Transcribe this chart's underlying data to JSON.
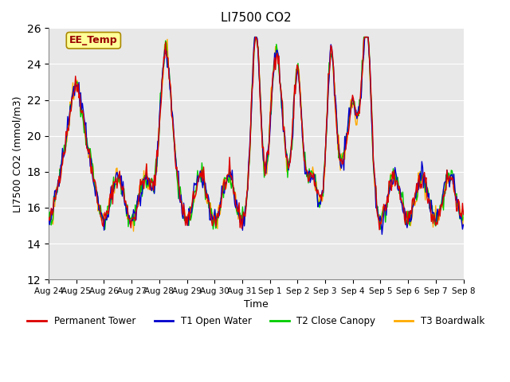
{
  "title": "LI7500 CO2",
  "ylabel": "LI7500 CO2 (mmol/m3)",
  "xlabel": "Time",
  "ylim": [
    12,
    26
  ],
  "yticks": [
    12,
    14,
    16,
    18,
    20,
    22,
    24,
    26
  ],
  "annotation_text": "EE_Temp",
  "annotation_color": "#990000",
  "annotation_bg": "#FFFF99",
  "bg_color": "#E8E8E8",
  "plot_bg": "#E8E8E8",
  "colors": {
    "Permanent Tower": "#DD0000",
    "T1 Open Water": "#0000CC",
    "T2 Close Canopy": "#00CC00",
    "T3 Boardwalk": "#FFAA00"
  },
  "x_labels": [
    "Aug 24",
    "Aug 25",
    "Aug 26",
    "Aug 27",
    "Aug 28",
    "Aug 29",
    "Aug 30",
    "Aug 31",
    "Sep 1",
    "Sep 2",
    "Sep 3",
    "Sep 4",
    "Sep 5",
    "Sep 6",
    "Sep 7",
    "Sep 8"
  ],
  "num_points": 480,
  "seed": 42
}
